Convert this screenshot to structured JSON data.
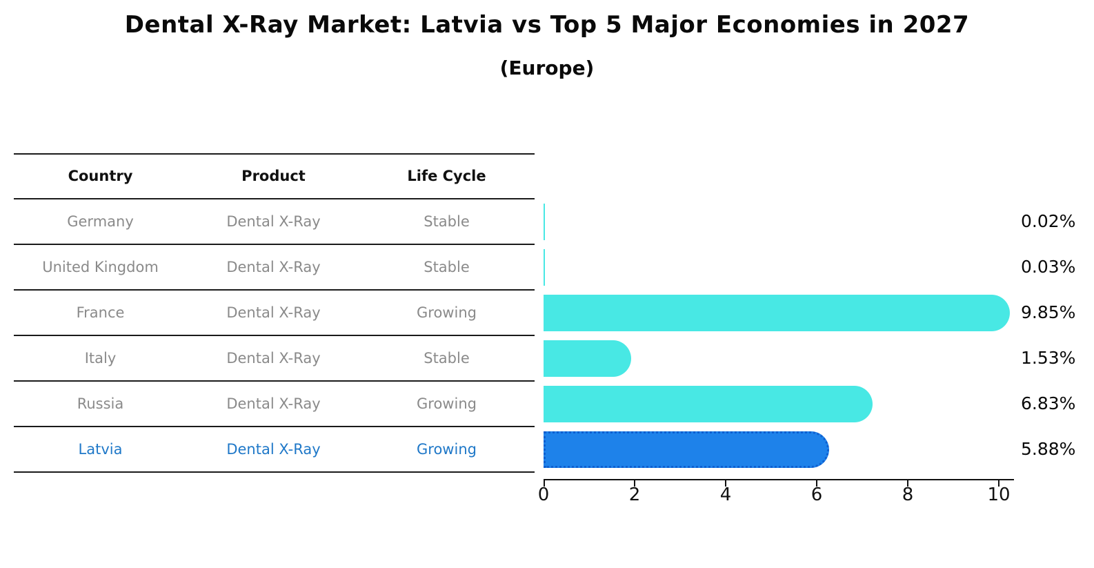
{
  "header": {
    "title": "Dental X-Ray Market: Latvia vs Top 5 Major Economies in 2027",
    "subtitle": "(Europe)"
  },
  "table": {
    "headers": [
      "Country",
      "Product",
      "Life Cycle"
    ],
    "rows": [
      {
        "country": "Germany",
        "product": "Dental X-Ray",
        "life_cycle": "Stable",
        "highlighted": false
      },
      {
        "country": "United Kingdom",
        "product": "Dental X-Ray",
        "life_cycle": "Stable",
        "highlighted": false
      },
      {
        "country": "France",
        "product": "Dental X-Ray",
        "life_cycle": "Growing",
        "highlighted": false
      },
      {
        "country": "Italy",
        "product": "Dental X-Ray",
        "life_cycle": "Stable",
        "highlighted": false
      },
      {
        "country": "Russia",
        "product": "Dental X-Ray",
        "life_cycle": "Growing",
        "highlighted": false
      },
      {
        "country": "Latvia",
        "product": "Dental X-Ray",
        "life_cycle": "Growing",
        "highlighted": true
      }
    ]
  },
  "chart_data": {
    "type": "bar",
    "orientation": "horizontal",
    "title": "Dental X-Ray Market: Latvia vs Top 5 Major Economies in 2027",
    "subtitle": "(Europe)",
    "categories": [
      "Germany",
      "United Kingdom",
      "France",
      "Italy",
      "Russia",
      "Latvia"
    ],
    "values": [
      0.02,
      0.03,
      9.85,
      1.53,
      6.83,
      5.88
    ],
    "value_labels": [
      "0.02%",
      "0.03%",
      "9.85%",
      "1.53%",
      "6.83%",
      "5.88%"
    ],
    "xticks": [
      0,
      2,
      4,
      6,
      8,
      10
    ],
    "xlim": [
      0,
      10.3
    ],
    "grid": false,
    "legend": false,
    "bar_color": "#48e8e4",
    "highlight_index": 5,
    "highlight_color": "#1e82ea",
    "highlight_border_color": "#0e5fd0",
    "label_color": "#0a0a0a",
    "highlight_text_color": "#1f78c8",
    "row_text_color": "#8a8a8a"
  }
}
